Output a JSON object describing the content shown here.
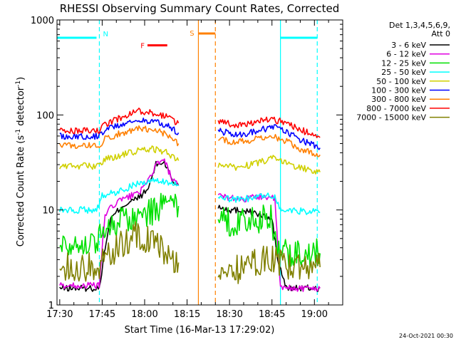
{
  "chart_data": {
    "type": "line",
    "title": "RHESSI Observing Summary Count Rates, Corrected",
    "xlabel": "Start Time (16-Mar-13 17:29:02)",
    "ylabel": "Corrected Count Rate (s^-1 detector^-1)",
    "ylabel_main": "Corrected Count Rate (s",
    "ylabel_sup1": "-1",
    "ylabel_mid": " detector",
    "ylabel_sup2": "-1",
    "ylabel_end": ")",
    "footer": "24-Oct-2021 00:30",
    "y_scale": "log",
    "ylim": [
      1,
      1000
    ],
    "xlim": [
      "17:29:02",
      "19:10:00"
    ],
    "x_ticks": [
      "17:30",
      "17:45",
      "18:00",
      "18:15",
      "18:30",
      "18:45",
      "19:00"
    ],
    "y_ticks": [
      "1",
      "10",
      "100",
      "1000"
    ],
    "legend": {
      "header_line1": "Det 1,3,4,5,6,9,",
      "header_line2": "Att 0",
      "placement": "right"
    },
    "data_gap": [
      "18:19",
      "18:25"
    ],
    "series": [
      {
        "name": "3 - 6 keV",
        "color": "#000000",
        "points": [
          [
            "17:30",
            1.5
          ],
          [
            "17:44",
            1.5
          ],
          [
            "17:46",
            4
          ],
          [
            "17:48",
            8
          ],
          [
            "17:52",
            11
          ],
          [
            "17:57",
            13
          ],
          [
            "18:01",
            16
          ],
          [
            "18:04",
            30
          ],
          [
            "18:07",
            32
          ],
          [
            "18:10",
            20
          ],
          [
            "18:12",
            18
          ],
          [
            "18:26",
            11
          ],
          [
            "18:30",
            10
          ],
          [
            "18:35",
            10
          ],
          [
            "18:40",
            9
          ],
          [
            "18:45",
            8
          ],
          [
            "18:47",
            3
          ],
          [
            "18:50",
            1.5
          ],
          [
            "19:02",
            1.5
          ]
        ]
      },
      {
        "name": "6 - 12 keV",
        "color": "#e000e0",
        "points": [
          [
            "17:30",
            1.6
          ],
          [
            "17:44",
            1.6
          ],
          [
            "17:46",
            9
          ],
          [
            "17:50",
            12
          ],
          [
            "17:55",
            14
          ],
          [
            "18:00",
            17
          ],
          [
            "18:04",
            30
          ],
          [
            "18:07",
            33
          ],
          [
            "18:10",
            20
          ],
          [
            "18:12",
            18
          ],
          [
            "18:26",
            14
          ],
          [
            "18:35",
            13
          ],
          [
            "18:42",
            14
          ],
          [
            "18:46",
            13
          ],
          [
            "18:48",
            1.5
          ],
          [
            "19:02",
            1.5
          ]
        ]
      },
      {
        "name": "12 - 25 keV",
        "color": "#00e000",
        "points": [
          [
            "17:30",
            4.5
          ],
          [
            "17:43",
            4.5
          ],
          [
            "17:45",
            6
          ],
          [
            "17:50",
            7.5
          ],
          [
            "17:55",
            8
          ],
          [
            "18:00",
            9
          ],
          [
            "18:05",
            10.5
          ],
          [
            "18:10",
            11
          ],
          [
            "18:12",
            11
          ],
          [
            "18:26",
            7.5
          ],
          [
            "18:35",
            7.5
          ],
          [
            "18:40",
            8
          ],
          [
            "18:45",
            8
          ],
          [
            "18:47",
            3.5
          ],
          [
            "19:02",
            3.5
          ]
        ]
      },
      {
        "name": "25 - 50 keV",
        "color": "#00ffff",
        "points": [
          [
            "17:30",
            10
          ],
          [
            "17:43",
            10
          ],
          [
            "17:45",
            14
          ],
          [
            "17:52",
            16
          ],
          [
            "17:57",
            19
          ],
          [
            "18:03",
            20
          ],
          [
            "18:08",
            20
          ],
          [
            "18:12",
            18
          ],
          [
            "18:26",
            13
          ],
          [
            "18:35",
            13
          ],
          [
            "18:42",
            14
          ],
          [
            "18:46",
            14
          ],
          [
            "18:48",
            10
          ],
          [
            "19:02",
            9.5
          ]
        ]
      },
      {
        "name": "50 - 100 keV",
        "color": "#d0d000",
        "points": [
          [
            "17:30",
            29
          ],
          [
            "17:44",
            29
          ],
          [
            "17:46",
            34
          ],
          [
            "17:52",
            38
          ],
          [
            "17:58",
            42
          ],
          [
            "18:03",
            44
          ],
          [
            "18:08",
            40
          ],
          [
            "18:12",
            33
          ],
          [
            "18:26",
            30
          ],
          [
            "18:33",
            28
          ],
          [
            "18:40",
            31
          ],
          [
            "18:45",
            35
          ],
          [
            "18:49",
            32
          ],
          [
            "18:55",
            28
          ],
          [
            "19:02",
            25
          ]
        ]
      },
      {
        "name": "100 - 300 keV",
        "color": "#0000ff",
        "points": [
          [
            "17:30",
            60
          ],
          [
            "17:44",
            60
          ],
          [
            "17:46",
            70
          ],
          [
            "17:52",
            80
          ],
          [
            "17:58",
            88
          ],
          [
            "18:03",
            85
          ],
          [
            "18:08",
            78
          ],
          [
            "18:12",
            65
          ],
          [
            "18:26",
            68
          ],
          [
            "18:33",
            62
          ],
          [
            "18:40",
            68
          ],
          [
            "18:45",
            75
          ],
          [
            "18:49",
            70
          ],
          [
            "18:55",
            55
          ],
          [
            "19:02",
            45
          ]
        ]
      },
      {
        "name": "300 - 800 keV",
        "color": "#ff8000",
        "points": [
          [
            "17:30",
            48
          ],
          [
            "17:44",
            48
          ],
          [
            "17:46",
            56
          ],
          [
            "17:52",
            65
          ],
          [
            "17:58",
            72
          ],
          [
            "18:03",
            70
          ],
          [
            "18:08",
            62
          ],
          [
            "18:12",
            50
          ],
          [
            "18:26",
            55
          ],
          [
            "18:33",
            52
          ],
          [
            "18:40",
            56
          ],
          [
            "18:45",
            60
          ],
          [
            "18:49",
            55
          ],
          [
            "18:55",
            44
          ],
          [
            "19:02",
            38
          ]
        ]
      },
      {
        "name": "800 - 7000 keV",
        "color": "#ff0000",
        "points": [
          [
            "17:30",
            68
          ],
          [
            "17:44",
            68
          ],
          [
            "17:46",
            80
          ],
          [
            "17:52",
            95
          ],
          [
            "17:58",
            110
          ],
          [
            "18:03",
            105
          ],
          [
            "18:08",
            95
          ],
          [
            "18:12",
            82
          ],
          [
            "18:26",
            85
          ],
          [
            "18:33",
            78
          ],
          [
            "18:40",
            85
          ],
          [
            "18:45",
            90
          ],
          [
            "18:49",
            85
          ],
          [
            "18:55",
            70
          ],
          [
            "19:02",
            58
          ]
        ]
      },
      {
        "name": "7000 - 15000 keV",
        "color": "#808000",
        "points": [
          [
            "17:30",
            2.5
          ],
          [
            "17:44",
            2.5
          ],
          [
            "17:46",
            3
          ],
          [
            "17:52",
            4.5
          ],
          [
            "17:58",
            5.5
          ],
          [
            "18:03",
            4.5
          ],
          [
            "18:08",
            3.5
          ],
          [
            "18:12",
            2.8
          ],
          [
            "18:26",
            2
          ],
          [
            "18:35",
            2.5
          ],
          [
            "18:42",
            3
          ],
          [
            "18:46",
            3
          ],
          [
            "18:50",
            2.5
          ],
          [
            "19:02",
            2.5
          ]
        ]
      }
    ],
    "flags": [
      {
        "label": "N",
        "color": "#00ffff",
        "bar_spans": [
          [
            "17:29",
            "17:43"
          ],
          [
            "18:48",
            "19:01"
          ]
        ],
        "bar_level": 650,
        "lines": [
          "17:44",
          "19:01"
        ],
        "line_style": "dashed",
        "solid_lines": [
          "18:48"
        ]
      },
      {
        "label": "F",
        "color": "#ff0000",
        "bar_spans": [
          [
            "18:01",
            "18:08"
          ]
        ],
        "bar_level": 540
      },
      {
        "label": "S",
        "color": "#ff8000",
        "bar_spans": [
          [
            "18:19",
            "18:25"
          ]
        ],
        "bar_level": 720,
        "lines": [
          "18:19",
          "18:25"
        ],
        "line_style": "mixed"
      }
    ]
  }
}
